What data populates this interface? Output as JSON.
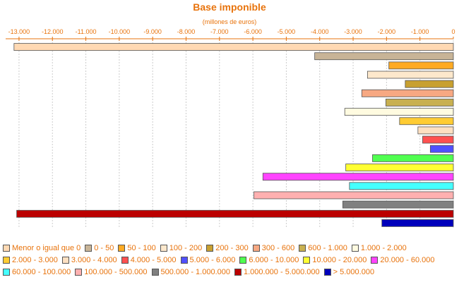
{
  "chart_data": {
    "type": "bar",
    "orientation": "horizontal",
    "title": "Base imponible",
    "subtitle": "(millones de euros)",
    "xlim": [
      -13400,
      0
    ],
    "xticks": [
      -13000,
      -12000,
      -11000,
      -10000,
      -9000,
      -8000,
      -7000,
      -6000,
      -5000,
      -4000,
      -3000,
      -2000,
      -1000,
      0
    ],
    "xtick_labels": [
      "-13.000",
      "-12.000",
      "-11.000",
      "-10.000",
      "-9.000",
      "-8.000",
      "-7.000",
      "-6.000",
      "-5.000",
      "-4.000",
      "-3.000",
      "-2.000",
      "-1.000",
      "0"
    ],
    "axis_position": "top",
    "grid": true,
    "legend_position": "bottom",
    "series": [
      {
        "name": "Menor o igual que 0",
        "value": -13150,
        "color": "#ffd9b3"
      },
      {
        "name": "0 - 50",
        "value": -4150,
        "color": "#c8b497"
      },
      {
        "name": "50 - 100",
        "value": -1930,
        "color": "#ffaa22"
      },
      {
        "name": "100 - 200",
        "value": -2570,
        "color": "#fde8cc"
      },
      {
        "name": "200 - 300",
        "value": -1440,
        "color": "#c8a030"
      },
      {
        "name": "300 - 600",
        "value": -2740,
        "color": "#f7a882"
      },
      {
        "name": "600 - 1.000",
        "value": -2020,
        "color": "#c8b050"
      },
      {
        "name": "1.000 - 2.000",
        "value": -3250,
        "color": "#fffbe0"
      },
      {
        "name": "2.000 - 3.000",
        "value": -1610,
        "color": "#ffcc33"
      },
      {
        "name": "3.000 - 4.000",
        "value": -1060,
        "color": "#fde0c2"
      },
      {
        "name": "4.000 - 5.000",
        "value": -920,
        "color": "#ff5050"
      },
      {
        "name": "5.000 - 6.000",
        "value": -690,
        "color": "#5050ff"
      },
      {
        "name": "6.000 - 10.000",
        "value": -2420,
        "color": "#50ff50"
      },
      {
        "name": "10.000 - 20.000",
        "value": -3220,
        "color": "#ffff33"
      },
      {
        "name": "20.000 - 60.000",
        "value": -5700,
        "color": "#ff44ff"
      },
      {
        "name": "60.000 - 100.000",
        "value": -3110,
        "color": "#44ffff"
      },
      {
        "name": "100.000 - 500.000",
        "value": -5970,
        "color": "#ffb0b0"
      },
      {
        "name": "500.000 - 1.000.000",
        "value": -3310,
        "color": "#808080"
      },
      {
        "name": "1.000.000 - 5.000.000",
        "value": -13070,
        "color": "#bb0000"
      },
      {
        "name": "> 5.000.000",
        "value": -2140,
        "color": "#0000bb"
      }
    ]
  }
}
